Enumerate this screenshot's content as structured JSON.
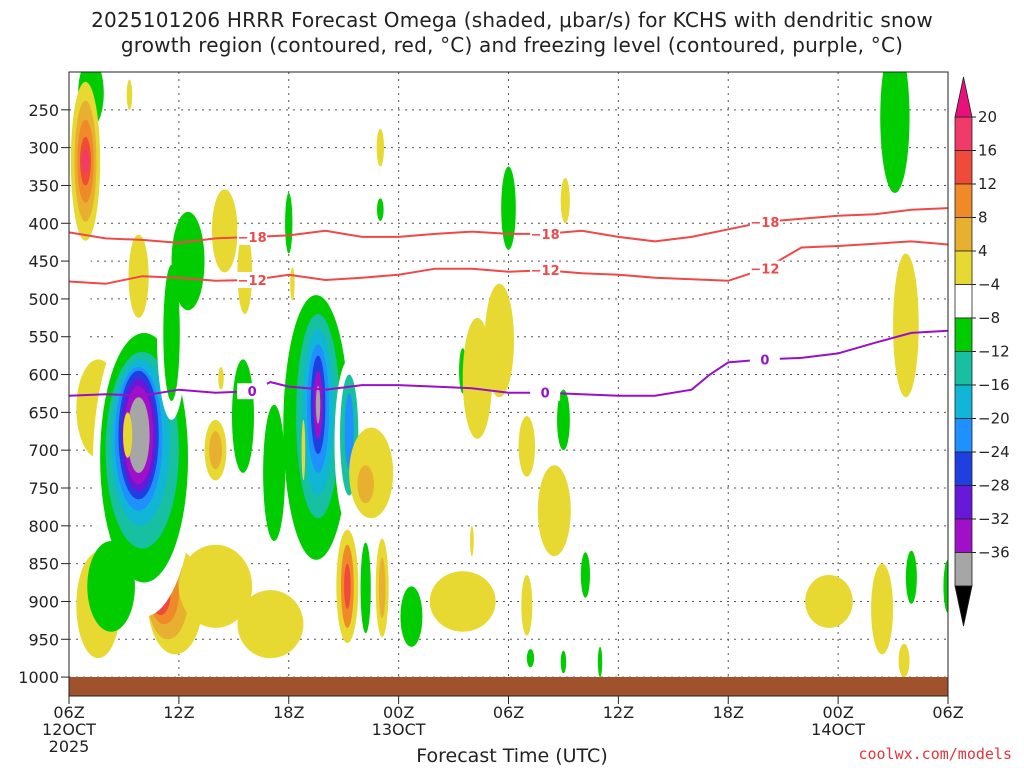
{
  "chart_data": {
    "type": "heatmap",
    "title_line1": "2025101206 HRRR Forecast Omega (shaded, μbar/s) for KCHS with dendritic snow",
    "title_line2": "growth region (contoured, red, °C) and freezing level (contoured, purple, °C)",
    "xlabel": "Forecast Time (UTC)",
    "credit": "coolwx.com/models",
    "x_range_hours": [
      0,
      48
    ],
    "y_range_hpa": [
      200,
      1025
    ],
    "y_ticks": [
      250,
      300,
      350,
      400,
      450,
      500,
      550,
      600,
      650,
      700,
      750,
      800,
      850,
      900,
      950,
      1000
    ],
    "x_ticks": [
      {
        "h": 0,
        "lines": [
          "06Z",
          "12OCT",
          "2025"
        ]
      },
      {
        "h": 6,
        "lines": [
          "12Z"
        ]
      },
      {
        "h": 12,
        "lines": [
          "18Z"
        ]
      },
      {
        "h": 18,
        "lines": [
          "00Z",
          "13OCT"
        ]
      },
      {
        "h": 24,
        "lines": [
          "06Z"
        ]
      },
      {
        "h": 30,
        "lines": [
          "12Z"
        ]
      },
      {
        "h": 36,
        "lines": [
          "18Z"
        ]
      },
      {
        "h": 42,
        "lines": [
          "00Z",
          "14OCT"
        ]
      },
      {
        "h": 48,
        "lines": [
          "06Z"
        ]
      }
    ],
    "colorbar": {
      "levels": [
        -36,
        -32,
        -28,
        -24,
        -20,
        -16,
        -12,
        -8,
        -4,
        4,
        8,
        12,
        16,
        20
      ],
      "labels": [
        "20",
        "16",
        "12",
        "8",
        "4",
        "−4",
        "−8",
        "−12",
        "−16",
        "−20",
        "−24",
        "−28",
        "−32",
        "−36"
      ],
      "colors": [
        "#000000",
        "#a6a6a6",
        "#a010c8",
        "#6818d8",
        "#1f3fe0",
        "#1e90ff",
        "#11b6d6",
        "#16c0a0",
        "#00cc00",
        "#ffffff",
        "#e8d832",
        "#e8b030",
        "#f08a28",
        "#f04a3a",
        "#f03a6a",
        "#e8107a"
      ]
    },
    "contours": [
      {
        "name": "-18C",
        "label": "−18",
        "color": "#f04848",
        "points": [
          [
            0,
            412
          ],
          [
            2,
            420
          ],
          [
            4,
            422
          ],
          [
            6,
            426
          ],
          [
            8,
            420
          ],
          [
            10,
            418
          ],
          [
            12,
            416
          ],
          [
            14,
            410
          ],
          [
            16,
            418
          ],
          [
            18,
            418
          ],
          [
            20,
            414
          ],
          [
            22,
            411
          ],
          [
            24,
            414
          ],
          [
            26,
            414
          ],
          [
            28,
            410
          ],
          [
            30,
            418
          ],
          [
            32,
            424
          ],
          [
            34,
            418
          ],
          [
            36,
            408
          ],
          [
            38,
            398
          ],
          [
            40,
            394
          ],
          [
            42,
            390
          ],
          [
            44,
            388
          ],
          [
            46,
            382
          ],
          [
            48,
            380
          ]
        ]
      },
      {
        "name": "-12C",
        "label": "−12",
        "color": "#f04848",
        "points": [
          [
            0,
            477
          ],
          [
            2,
            480
          ],
          [
            4,
            470
          ],
          [
            6,
            472
          ],
          [
            8,
            476
          ],
          [
            10,
            475
          ],
          [
            12,
            468
          ],
          [
            14,
            475
          ],
          [
            16,
            472
          ],
          [
            18,
            468
          ],
          [
            20,
            460
          ],
          [
            22,
            460
          ],
          [
            24,
            464
          ],
          [
            26,
            462
          ],
          [
            28,
            466
          ],
          [
            30,
            468
          ],
          [
            32,
            472
          ],
          [
            34,
            474
          ],
          [
            36,
            476
          ],
          [
            38,
            460
          ],
          [
            40,
            432
          ],
          [
            42,
            430
          ],
          [
            44,
            427
          ],
          [
            46,
            424
          ],
          [
            48,
            428
          ]
        ]
      },
      {
        "name": "0C",
        "label": "0",
        "color": "#9a10c8",
        "points": [
          [
            0,
            628
          ],
          [
            2,
            626
          ],
          [
            4,
            628
          ],
          [
            6,
            620
          ],
          [
            8,
            624
          ],
          [
            10,
            622
          ],
          [
            11,
            610
          ],
          [
            12,
            616
          ],
          [
            14,
            620
          ],
          [
            16,
            614
          ],
          [
            18,
            614
          ],
          [
            20,
            616
          ],
          [
            22,
            618
          ],
          [
            24,
            624
          ],
          [
            26,
            624
          ],
          [
            28,
            626
          ],
          [
            30,
            628
          ],
          [
            32,
            628
          ],
          [
            34,
            620
          ],
          [
            35,
            600
          ],
          [
            36,
            584
          ],
          [
            38,
            580
          ],
          [
            40,
            578
          ],
          [
            42,
            572
          ],
          [
            44,
            558
          ],
          [
            46,
            545
          ],
          [
            48,
            542
          ]
        ]
      }
    ],
    "omega_blobs": [
      {
        "cx": 1.6,
        "cy": 645,
        "rx": 1.2,
        "ry": 65,
        "v": 4
      },
      {
        "cx": 1.6,
        "cy": 905,
        "rx": 1.2,
        "ry": 70,
        "v": 4
      },
      {
        "cx": 0.6,
        "cy": 470,
        "rx": 0.6,
        "ry": 90,
        "v": -4
      },
      {
        "cx": 1.2,
        "cy": 228,
        "rx": 0.7,
        "ry": 45,
        "v": -8
      },
      {
        "cx": 0.9,
        "cy": 318,
        "rx": 0.8,
        "ry": 105,
        "v": 4
      },
      {
        "cx": 0.9,
        "cy": 318,
        "rx": 0.6,
        "ry": 80,
        "v": 8
      },
      {
        "cx": 0.9,
        "cy": 318,
        "rx": 0.45,
        "ry": 55,
        "v": 12
      },
      {
        "cx": 0.9,
        "cy": 318,
        "rx": 0.3,
        "ry": 32,
        "v": 16
      },
      {
        "cx": 0.9,
        "cy": 318,
        "rx": 0.18,
        "ry": 15,
        "v": 20
      },
      {
        "cx": 5.8,
        "cy": 900,
        "rx": 1.5,
        "ry": 70,
        "v": 4
      },
      {
        "cx": 5.4,
        "cy": 895,
        "rx": 1.1,
        "ry": 55,
        "v": 8
      },
      {
        "cx": 5.2,
        "cy": 890,
        "rx": 0.8,
        "ry": 40,
        "v": 12
      },
      {
        "cx": 5.0,
        "cy": 890,
        "rx": 0.55,
        "ry": 28,
        "v": 16
      },
      {
        "cx": 4.9,
        "cy": 890,
        "rx": 0.3,
        "ry": 15,
        "v": 20
      },
      {
        "cx": 4.1,
        "cy": 720,
        "rx": 2.8,
        "ry": 200,
        "v": -4
      },
      {
        "cx": 4.1,
        "cy": 710,
        "rx": 2.4,
        "ry": 165,
        "v": -8
      },
      {
        "cx": 4.0,
        "cy": 700,
        "rx": 2.0,
        "ry": 130,
        "v": -12
      },
      {
        "cx": 3.9,
        "cy": 690,
        "rx": 1.6,
        "ry": 110,
        "v": -16
      },
      {
        "cx": 3.8,
        "cy": 685,
        "rx": 1.3,
        "ry": 95,
        "v": -20
      },
      {
        "cx": 3.8,
        "cy": 680,
        "rx": 1.1,
        "ry": 85,
        "v": -24
      },
      {
        "cx": 3.8,
        "cy": 680,
        "rx": 0.95,
        "ry": 75,
        "v": -28
      },
      {
        "cx": 3.8,
        "cy": 680,
        "rx": 0.8,
        "ry": 65,
        "v": -32
      },
      {
        "cx": 3.8,
        "cy": 680,
        "rx": 0.6,
        "ry": 50,
        "v": -36
      },
      {
        "cx": 3.8,
        "cy": 470,
        "rx": 0.55,
        "ry": 55,
        "v": 4
      },
      {
        "cx": 5.6,
        "cy": 545,
        "rx": 0.8,
        "ry": 115,
        "v": -4
      },
      {
        "cx": 5.6,
        "cy": 545,
        "rx": 0.45,
        "ry": 90,
        "v": -8
      },
      {
        "cx": 4.2,
        "cy": 195,
        "rx": 0.45,
        "ry": 60,
        "v": -4
      },
      {
        "cx": 2.3,
        "cy": 880,
        "rx": 1.3,
        "ry": 60,
        "v": -8
      },
      {
        "cx": 8.0,
        "cy": 880,
        "rx": 2.0,
        "ry": 55,
        "v": 4
      },
      {
        "cx": 8.0,
        "cy": 700,
        "rx": 0.6,
        "ry": 40,
        "v": 4
      },
      {
        "cx": 8.0,
        "cy": 700,
        "rx": 0.35,
        "ry": 25,
        "v": 8
      },
      {
        "cx": 9.5,
        "cy": 655,
        "rx": 0.6,
        "ry": 75,
        "v": -8
      },
      {
        "cx": 9.6,
        "cy": 465,
        "rx": 0.4,
        "ry": 55,
        "v": 4
      },
      {
        "cx": 13.3,
        "cy": 690,
        "rx": 2.2,
        "ry": 200,
        "v": -4
      },
      {
        "cx": 13.5,
        "cy": 670,
        "rx": 1.8,
        "ry": 175,
        "v": -8
      },
      {
        "cx": 13.6,
        "cy": 655,
        "rx": 1.2,
        "ry": 135,
        "v": -12
      },
      {
        "cx": 13.6,
        "cy": 650,
        "rx": 0.85,
        "ry": 110,
        "v": -16
      },
      {
        "cx": 13.6,
        "cy": 645,
        "rx": 0.6,
        "ry": 85,
        "v": -20
      },
      {
        "cx": 13.6,
        "cy": 640,
        "rx": 0.4,
        "ry": 65,
        "v": -24
      },
      {
        "cx": 13.6,
        "cy": 640,
        "rx": 0.25,
        "ry": 45,
        "v": -32
      },
      {
        "cx": 13.6,
        "cy": 640,
        "rx": 0.12,
        "ry": 25,
        "v": -36
      },
      {
        "cx": 11.2,
        "cy": 730,
        "rx": 0.6,
        "ry": 90,
        "v": -8
      },
      {
        "cx": 15.3,
        "cy": 690,
        "rx": 0.8,
        "ry": 110,
        "v": -4
      },
      {
        "cx": 15.3,
        "cy": 680,
        "rx": 0.5,
        "ry": 80,
        "v": -12
      },
      {
        "cx": 15.3,
        "cy": 675,
        "rx": 0.25,
        "ry": 50,
        "v": -20
      },
      {
        "cx": 12.2,
        "cy": 382,
        "rx": 0.25,
        "ry": 32,
        "v": -4
      },
      {
        "cx": 16.5,
        "cy": 730,
        "rx": 1.2,
        "ry": 60,
        "v": 4
      },
      {
        "cx": 16.2,
        "cy": 745,
        "rx": 0.45,
        "ry": 25,
        "v": 8
      },
      {
        "cx": 15.2,
        "cy": 880,
        "rx": 0.6,
        "ry": 75,
        "v": 4
      },
      {
        "cx": 15.2,
        "cy": 880,
        "rx": 0.35,
        "ry": 55,
        "v": 12
      },
      {
        "cx": 15.2,
        "cy": 880,
        "rx": 0.18,
        "ry": 30,
        "v": 16
      },
      {
        "cx": 16.2,
        "cy": 882,
        "rx": 0.28,
        "ry": 60,
        "v": -8
      },
      {
        "cx": 17.1,
        "cy": 882,
        "rx": 0.35,
        "ry": 65,
        "v": 4
      },
      {
        "cx": 17.1,
        "cy": 882,
        "rx": 0.18,
        "ry": 40,
        "v": 8
      },
      {
        "cx": 18.7,
        "cy": 920,
        "rx": 0.6,
        "ry": 40,
        "v": -8
      },
      {
        "cx": 11.0,
        "cy": 930,
        "rx": 1.8,
        "ry": 45,
        "v": 4
      },
      {
        "cx": 3.2,
        "cy": 680,
        "rx": 0.25,
        "ry": 30,
        "v": 4
      },
      {
        "cx": 8.5,
        "cy": 410,
        "rx": 0.7,
        "ry": 55,
        "v": 4
      },
      {
        "cx": 6.5,
        "cy": 450,
        "rx": 0.9,
        "ry": 65,
        "v": -8
      },
      {
        "cx": 12.0,
        "cy": 400,
        "rx": 0.2,
        "ry": 40,
        "v": -8
      },
      {
        "cx": 17.0,
        "cy": 300,
        "rx": 0.2,
        "ry": 25,
        "v": 4
      },
      {
        "cx": 17.0,
        "cy": 382,
        "rx": 0.18,
        "ry": 15,
        "v": -8
      },
      {
        "cx": 8.3,
        "cy": 605,
        "rx": 0.15,
        "ry": 15,
        "v": 4
      },
      {
        "cx": 12.2,
        "cy": 480,
        "rx": 0.12,
        "ry": 22,
        "v": 4
      },
      {
        "cx": 12.8,
        "cy": 700,
        "rx": 0.1,
        "ry": 40,
        "v": 4
      },
      {
        "cx": 3.3,
        "cy": 230,
        "rx": 0.15,
        "ry": 20,
        "v": 4
      },
      {
        "cx": 21.5,
        "cy": 595,
        "rx": 0.2,
        "ry": 30,
        "v": -8
      },
      {
        "cx": 22.0,
        "cy": 820,
        "rx": 0.1,
        "ry": 20,
        "v": 4
      },
      {
        "cx": 22.3,
        "cy": 605,
        "rx": 0.8,
        "ry": 80,
        "v": 4
      },
      {
        "cx": 21.5,
        "cy": 900,
        "rx": 1.8,
        "ry": 40,
        "v": 4
      },
      {
        "cx": 23.5,
        "cy": 555,
        "rx": 0.8,
        "ry": 75,
        "v": 4
      },
      {
        "cx": 24.0,
        "cy": 380,
        "rx": 0.4,
        "ry": 55,
        "v": -8
      },
      {
        "cx": 25.0,
        "cy": 905,
        "rx": 0.3,
        "ry": 40,
        "v": 4
      },
      {
        "cx": 25.2,
        "cy": 975,
        "rx": 0.2,
        "ry": 12,
        "v": -8
      },
      {
        "cx": 25.0,
        "cy": 695,
        "rx": 0.45,
        "ry": 40,
        "v": 4
      },
      {
        "cx": 27.1,
        "cy": 370,
        "rx": 0.25,
        "ry": 30,
        "v": 4
      },
      {
        "cx": 26.5,
        "cy": 780,
        "rx": 0.9,
        "ry": 60,
        "v": 4
      },
      {
        "cx": 27.0,
        "cy": 660,
        "rx": 0.35,
        "ry": 40,
        "v": -8
      },
      {
        "cx": 27.0,
        "cy": 980,
        "rx": 0.15,
        "ry": 15,
        "v": -8
      },
      {
        "cx": 28.2,
        "cy": 865,
        "rx": 0.25,
        "ry": 30,
        "v": -8
      },
      {
        "cx": 29.0,
        "cy": 980,
        "rx": 0.12,
        "ry": 20,
        "v": -8
      },
      {
        "cx": 45.1,
        "cy": 260,
        "rx": 0.8,
        "ry": 100,
        "v": -8
      },
      {
        "cx": 45.7,
        "cy": 535,
        "rx": 0.7,
        "ry": 95,
        "v": 4
      },
      {
        "cx": 45.6,
        "cy": 978,
        "rx": 0.3,
        "ry": 22,
        "v": 4
      },
      {
        "cx": 44.4,
        "cy": 910,
        "rx": 0.6,
        "ry": 60,
        "v": 4
      },
      {
        "cx": 41.5,
        "cy": 900,
        "rx": 1.3,
        "ry": 35,
        "v": 4
      },
      {
        "cx": 46.0,
        "cy": 868,
        "rx": 0.3,
        "ry": 35,
        "v": -8
      },
      {
        "cx": 48.0,
        "cy": 880,
        "rx": 0.25,
        "ry": 35,
        "v": -8
      }
    ]
  }
}
